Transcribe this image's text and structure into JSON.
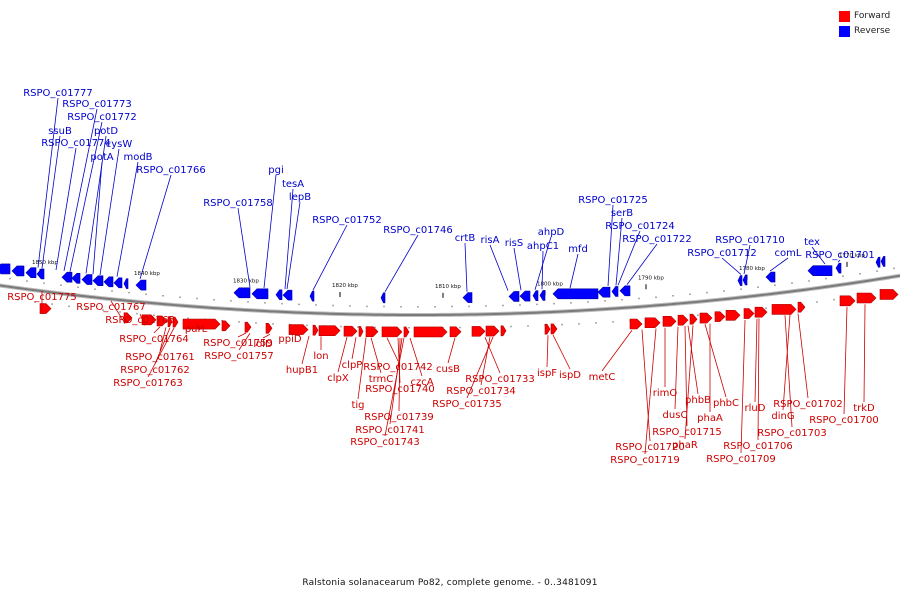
{
  "legend": {
    "forward": {
      "label": "Forward",
      "color": "#ff0000"
    },
    "reverse": {
      "label": "Reverse",
      "color": "#0000ff"
    }
  },
  "caption": "Ralstonia solanacearum Po82, complete genome. - 0..3481091",
  "scale_labels": [
    "1850 kbp",
    "1840 kbp",
    "1830 kbp",
    "1820 kbp",
    "1810 kbp",
    "1800 kbp",
    "1790 kbp",
    "1780 kbp",
    "1770 kbp"
  ],
  "reverse_genes": [
    "RSPO_c01777",
    "RSPO_c01773",
    "RSPO_c01772",
    "ssuB",
    "potD",
    "RSPO_c01774",
    "cysW",
    "potA",
    "modB",
    "RSPO_c01766",
    "pgi",
    "tesA",
    "RSPO_c01758",
    "lepB",
    "RSPO_c01752",
    "RSPO_c01746",
    "crtB",
    "risA",
    "risS",
    "ahpD",
    "ahpC1",
    "mfd",
    "RSPO_c01725",
    "serB",
    "RSPO_c01724",
    "RSPO_c01722",
    "RSPO_c01710",
    "RSPO_c01712",
    "comL",
    "tex",
    "RSPO_c01701"
  ],
  "forward_genes": [
    "RSPO_c01775",
    "RSPO_c01767",
    "RSPO_c01765",
    "RSPO_c01764",
    "RSPO_c01761",
    "RSPO_c01762",
    "RSPO_c01763",
    "purL",
    "RSPO_c01759",
    "lolD",
    "RSPO_c01757",
    "ppiD",
    "hupB1",
    "lon",
    "clpP",
    "clpX",
    "tig",
    "trmC",
    "RSPO_c01742",
    "czcA",
    "RSPO_c01740",
    "RSPO_c01739",
    "RSPO_c01741",
    "RSPO_c01743",
    "cusB",
    "RSPO_c01733",
    "RSPO_c01734",
    "RSPO_c01735",
    "ispF",
    "ispD",
    "metC",
    "rimO",
    "phbB",
    "phbC",
    "dusC",
    "phaA",
    "rluD",
    "RSPO_c01702",
    "dinG",
    "RSPO_c01703",
    "RSPO_c01700",
    "trkD",
    "RSPO_c01715",
    "phaR",
    "RSPO_c01706",
    "RSPO_c01720",
    "RSPO_c01719",
    "RSPO_c01709"
  ]
}
